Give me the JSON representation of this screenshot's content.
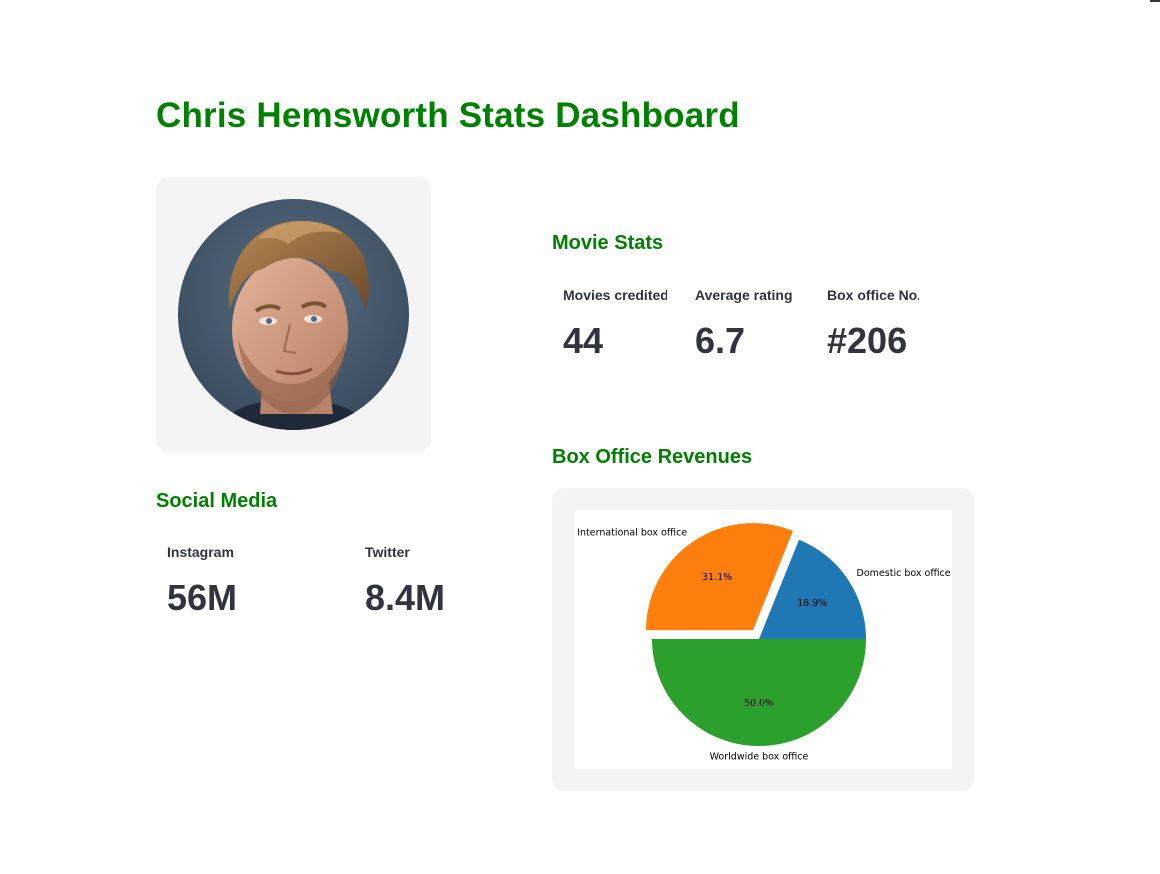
{
  "dashboard": {
    "title": "Chris Hemsworth Stats Dashboard"
  },
  "portrait": {
    "icon": "person-photo"
  },
  "movie_stats": {
    "heading": "Movie Stats",
    "metrics": [
      {
        "label": "Movies credited",
        "value": "44"
      },
      {
        "label": "Average rating",
        "value": "6.7"
      },
      {
        "label": "Box office No.",
        "value": "#206"
      }
    ]
  },
  "social_media": {
    "heading": "Social Media",
    "metrics": [
      {
        "label": "Instagram",
        "value": "56M"
      },
      {
        "label": "Twitter",
        "value": "8.4M"
      }
    ]
  },
  "box_office": {
    "heading": "Box Office Revenues"
  },
  "colors": {
    "accent_green": "#008000",
    "pie_blue": "#1f77b4",
    "pie_orange": "#ff7f0e",
    "pie_green": "#2ca02c"
  },
  "chart_data": {
    "type": "pie",
    "title": "",
    "categories": [
      "Domestic box office",
      "International box office",
      "Worldwide box office"
    ],
    "values": [
      18.9,
      31.1,
      50.0
    ],
    "value_labels": [
      "18.9%",
      "31.1%",
      "50.0%"
    ],
    "colors": [
      "#1f77b4",
      "#ff7f0e",
      "#2ca02c"
    ],
    "exploded": [
      false,
      true,
      false
    ],
    "start_angle_deg": 0,
    "legend": "none"
  }
}
